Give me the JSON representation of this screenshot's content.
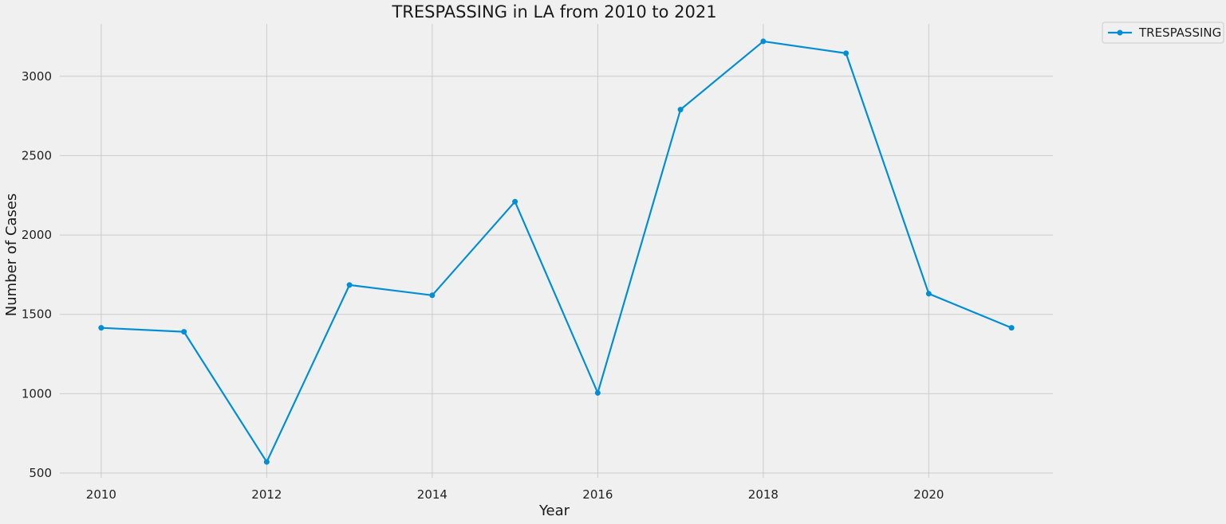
{
  "chart_data": {
    "type": "line",
    "title": "TRESPASSING in LA from 2010 to 2021",
    "xlabel": "Year",
    "ylabel": "Number of Cases",
    "x": [
      2010,
      2011,
      2012,
      2013,
      2014,
      2015,
      2016,
      2017,
      2018,
      2019,
      2020,
      2021
    ],
    "series": [
      {
        "name": "TRESPASSING",
        "values": [
          1415,
          1390,
          570,
          1685,
          1620,
          2210,
          1005,
          2790,
          3220,
          3145,
          1630,
          1415
        ],
        "color": "#008fd5"
      }
    ],
    "xticks": [
      "2010",
      "2012",
      "2014",
      "2016",
      "2018",
      "2020"
    ],
    "yticks": [
      "500",
      "1000",
      "1500",
      "2000",
      "2500",
      "3000"
    ],
    "xlim": [
      2009.5,
      2021.5
    ],
    "ylim": [
      470,
      3330
    ],
    "grid": true,
    "legend_position": "outside-top-right"
  }
}
